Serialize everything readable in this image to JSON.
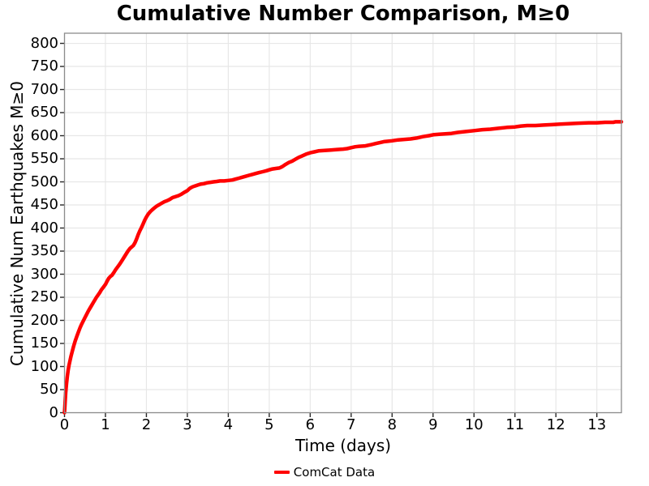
{
  "chart_data": {
    "type": "line",
    "title": "Cumulative Number Comparison, M≥0",
    "xlabel": "Time (days)",
    "ylabel": "Cumulative Num Earthquakes M≥0",
    "xlim": [
      0,
      13.6
    ],
    "ylim": [
      0,
      822
    ],
    "x_ticks": [
      0,
      1,
      2,
      3,
      4,
      5,
      6,
      7,
      8,
      9,
      10,
      11,
      12,
      13
    ],
    "y_ticks": [
      0,
      50,
      100,
      150,
      200,
      250,
      300,
      350,
      400,
      450,
      500,
      550,
      600,
      650,
      700,
      750,
      800
    ],
    "grid": true,
    "legend": {
      "position": "bottom-center",
      "entries": [
        {
          "label": "ComCat Data",
          "color": "#ff0000"
        }
      ]
    },
    "series": [
      {
        "name": "ComCat Data",
        "color": "#ff0000",
        "line_width": 4.5,
        "points": [
          [
            0.0,
            0
          ],
          [
            0.01,
            14
          ],
          [
            0.02,
            30
          ],
          [
            0.03,
            44
          ],
          [
            0.05,
            63
          ],
          [
            0.07,
            79
          ],
          [
            0.09,
            92
          ],
          [
            0.11,
            103
          ],
          [
            0.13,
            111
          ],
          [
            0.16,
            123
          ],
          [
            0.19,
            133
          ],
          [
            0.22,
            143
          ],
          [
            0.26,
            155
          ],
          [
            0.3,
            165
          ],
          [
            0.34,
            175
          ],
          [
            0.38,
            184
          ],
          [
            0.42,
            192
          ],
          [
            0.46,
            199
          ],
          [
            0.5,
            206
          ],
          [
            0.54,
            213
          ],
          [
            0.58,
            220
          ],
          [
            0.62,
            226
          ],
          [
            0.66,
            232
          ],
          [
            0.7,
            238
          ],
          [
            0.74,
            244
          ],
          [
            0.78,
            250
          ],
          [
            0.82,
            255
          ],
          [
            0.86,
            260
          ],
          [
            0.9,
            266
          ],
          [
            0.95,
            272
          ],
          [
            1.0,
            278
          ],
          [
            1.04,
            285
          ],
          [
            1.08,
            291
          ],
          [
            1.12,
            295
          ],
          [
            1.16,
            298
          ],
          [
            1.2,
            303
          ],
          [
            1.25,
            310
          ],
          [
            1.3,
            316
          ],
          [
            1.35,
            322
          ],
          [
            1.4,
            329
          ],
          [
            1.45,
            336
          ],
          [
            1.5,
            343
          ],
          [
            1.55,
            350
          ],
          [
            1.6,
            356
          ],
          [
            1.64,
            359
          ],
          [
            1.68,
            362
          ],
          [
            1.72,
            368
          ],
          [
            1.76,
            376
          ],
          [
            1.8,
            386
          ],
          [
            1.84,
            394
          ],
          [
            1.88,
            401
          ],
          [
            1.92,
            409
          ],
          [
            1.96,
            417
          ],
          [
            2.0,
            424
          ],
          [
            2.05,
            431
          ],
          [
            2.1,
            436
          ],
          [
            2.15,
            440
          ],
          [
            2.2,
            444
          ],
          [
            2.26,
            448
          ],
          [
            2.32,
            451
          ],
          [
            2.38,
            454
          ],
          [
            2.44,
            457
          ],
          [
            2.5,
            459
          ],
          [
            2.57,
            462
          ],
          [
            2.64,
            466
          ],
          [
            2.71,
            468
          ],
          [
            2.78,
            470
          ],
          [
            2.85,
            473
          ],
          [
            2.92,
            477
          ],
          [
            3.0,
            481
          ],
          [
            3.06,
            486
          ],
          [
            3.12,
            489
          ],
          [
            3.18,
            491
          ],
          [
            3.25,
            493
          ],
          [
            3.32,
            495
          ],
          [
            3.4,
            496
          ],
          [
            3.48,
            498
          ],
          [
            3.56,
            499
          ],
          [
            3.64,
            500
          ],
          [
            3.72,
            501
          ],
          [
            3.8,
            502
          ],
          [
            3.9,
            502
          ],
          [
            4.0,
            503
          ],
          [
            4.1,
            504
          ],
          [
            4.18,
            506
          ],
          [
            4.26,
            508
          ],
          [
            4.34,
            510
          ],
          [
            4.42,
            512
          ],
          [
            4.5,
            514
          ],
          [
            4.58,
            516
          ],
          [
            4.66,
            518
          ],
          [
            4.75,
            520
          ],
          [
            4.84,
            522
          ],
          [
            4.93,
            524
          ],
          [
            5.0,
            526
          ],
          [
            5.08,
            528
          ],
          [
            5.16,
            529
          ],
          [
            5.25,
            530
          ],
          [
            5.32,
            533
          ],
          [
            5.4,
            538
          ],
          [
            5.48,
            542
          ],
          [
            5.56,
            545
          ],
          [
            5.64,
            549
          ],
          [
            5.72,
            553
          ],
          [
            5.8,
            556
          ],
          [
            5.9,
            560
          ],
          [
            6.0,
            563
          ],
          [
            6.1,
            565
          ],
          [
            6.2,
            567
          ],
          [
            6.35,
            568
          ],
          [
            6.5,
            569
          ],
          [
            6.65,
            570
          ],
          [
            6.8,
            571
          ],
          [
            6.9,
            572
          ],
          [
            7.0,
            574
          ],
          [
            7.1,
            576
          ],
          [
            7.2,
            577
          ],
          [
            7.35,
            578
          ],
          [
            7.5,
            581
          ],
          [
            7.6,
            583
          ],
          [
            7.7,
            585
          ],
          [
            7.8,
            587
          ],
          [
            7.9,
            588
          ],
          [
            8.0,
            589
          ],
          [
            8.15,
            591
          ],
          [
            8.3,
            592
          ],
          [
            8.45,
            593
          ],
          [
            8.6,
            595
          ],
          [
            8.75,
            598
          ],
          [
            8.9,
            600
          ],
          [
            9.0,
            602
          ],
          [
            9.15,
            603
          ],
          [
            9.3,
            604
          ],
          [
            9.45,
            605
          ],
          [
            9.6,
            607
          ],
          [
            9.8,
            609
          ],
          [
            10.0,
            611
          ],
          [
            10.2,
            613
          ],
          [
            10.4,
            614
          ],
          [
            10.6,
            616
          ],
          [
            10.8,
            618
          ],
          [
            11.0,
            619
          ],
          [
            11.15,
            621
          ],
          [
            11.3,
            622
          ],
          [
            11.5,
            622
          ],
          [
            11.7,
            623
          ],
          [
            11.9,
            624
          ],
          [
            12.1,
            625
          ],
          [
            12.3,
            626
          ],
          [
            12.55,
            627
          ],
          [
            12.8,
            628
          ],
          [
            13.0,
            628
          ],
          [
            13.2,
            629
          ],
          [
            13.4,
            629
          ],
          [
            13.45,
            630
          ],
          [
            13.6,
            630
          ]
        ]
      }
    ]
  },
  "colors": {
    "background": "#ffffff",
    "grid": "#e7e7e7",
    "spine": "#8c8c8c",
    "tick": "#262626",
    "text": "#000000",
    "accent": "#ff0000"
  }
}
